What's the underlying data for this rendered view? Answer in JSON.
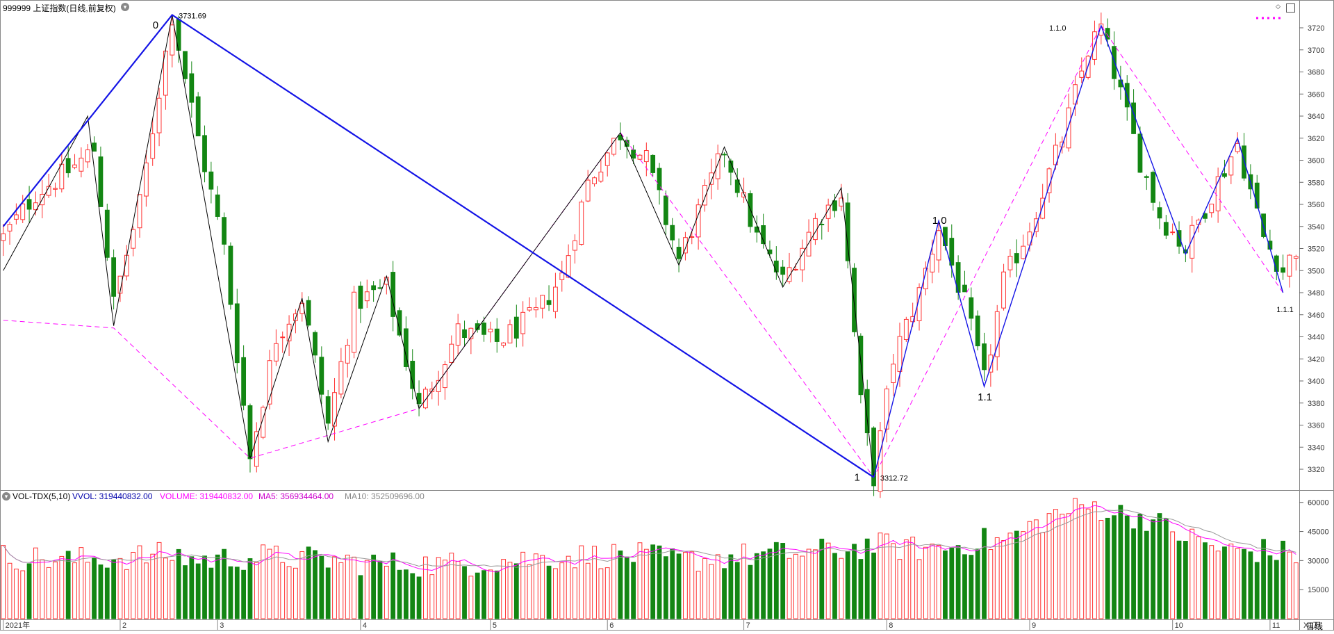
{
  "header": {
    "title": "999999 上证指数(日线,前复权)",
    "vol_indicator": "VOL-TDX(5,10)",
    "vvol": "VVOL: 319440832.00",
    "volume": "VOLUME: 319440832.00",
    "ma5": "MA5: 356934464.00",
    "ma10": "MA10: 352509696.00"
  },
  "period_label": "日线",
  "vol_unit": "X1万",
  "colors": {
    "up": "#ff3232",
    "down": "#138613",
    "blue": "#1414e6",
    "pink": "#ff00ff",
    "ma10": "#999999",
    "grid": "#888888"
  },
  "chart_data": {
    "type": "candlestick",
    "price_axis": {
      "min": 3310,
      "max": 3730,
      "ticks": [
        3320,
        3340,
        3360,
        3380,
        3400,
        3420,
        3440,
        3460,
        3480,
        3500,
        3520,
        3540,
        3560,
        3580,
        3600,
        3620,
        3640,
        3660,
        3680,
        3700,
        3720
      ]
    },
    "volume_axis": {
      "min": 0,
      "max": 66000,
      "ticks": [
        15000,
        30000,
        45000,
        60000
      ]
    },
    "x_labels": [
      {
        "label": "2021年",
        "index": 0
      },
      {
        "label": "2",
        "index": 18
      },
      {
        "label": "3",
        "index": 33
      },
      {
        "label": "4",
        "index": 55
      },
      {
        "label": "5",
        "index": 75
      },
      {
        "label": "6",
        "index": 93
      },
      {
        "label": "7",
        "index": 114
      },
      {
        "label": "8",
        "index": 136
      },
      {
        "label": "9",
        "index": 158
      },
      {
        "label": "10",
        "index": 180
      },
      {
        "label": "11",
        "index": 195
      }
    ],
    "candles_count": 200,
    "price_anchors": [
      [
        0,
        3530
      ],
      [
        5,
        3570
      ],
      [
        10,
        3590
      ],
      [
        14,
        3610
      ],
      [
        17,
        3470
      ],
      [
        21,
        3560
      ],
      [
        26,
        3731.69
      ],
      [
        30,
        3620
      ],
      [
        34,
        3520
      ],
      [
        38,
        3330
      ],
      [
        42,
        3440
      ],
      [
        46,
        3475
      ],
      [
        50,
        3360
      ],
      [
        54,
        3470
      ],
      [
        59,
        3485
      ],
      [
        64,
        3375
      ],
      [
        70,
        3445
      ],
      [
        76,
        3435
      ],
      [
        82,
        3460
      ],
      [
        86,
        3495
      ],
      [
        90,
        3580
      ],
      [
        95,
        3625
      ],
      [
        99,
        3600
      ],
      [
        104,
        3510
      ],
      [
        111,
        3610
      ],
      [
        116,
        3530
      ],
      [
        120,
        3490
      ],
      [
        125,
        3545
      ],
      [
        129,
        3570
      ],
      [
        132,
        3380
      ],
      [
        134,
        3312.72
      ],
      [
        137,
        3420
      ],
      [
        141,
        3480
      ],
      [
        144,
        3540
      ],
      [
        148,
        3470
      ],
      [
        151,
        3400
      ],
      [
        154,
        3490
      ],
      [
        158,
        3540
      ],
      [
        163,
        3620
      ],
      [
        165,
        3660
      ],
      [
        167,
        3700
      ],
      [
        169,
        3720
      ],
      [
        171,
        3680
      ],
      [
        175,
        3600
      ],
      [
        178,
        3550
      ],
      [
        182,
        3520
      ],
      [
        186,
        3570
      ],
      [
        190,
        3615
      ],
      [
        194,
        3530
      ],
      [
        197,
        3500
      ],
      [
        199,
        3520
      ]
    ],
    "volume_anchors": [
      [
        0,
        32000
      ],
      [
        10,
        30000
      ],
      [
        26,
        33000
      ],
      [
        30,
        30000
      ],
      [
        40,
        32000
      ],
      [
        50,
        30000
      ],
      [
        60,
        28000
      ],
      [
        70,
        28000
      ],
      [
        76,
        30000
      ],
      [
        86,
        32000
      ],
      [
        96,
        33000
      ],
      [
        104,
        30000
      ],
      [
        112,
        32000
      ],
      [
        118,
        33000
      ],
      [
        128,
        35000
      ],
      [
        134,
        38000
      ],
      [
        140,
        36000
      ],
      [
        146,
        37000
      ],
      [
        150,
        40000
      ],
      [
        154,
        40000
      ],
      [
        158,
        47000
      ],
      [
        162,
        54000
      ],
      [
        166,
        57000
      ],
      [
        168,
        58000
      ],
      [
        172,
        54000
      ],
      [
        176,
        52000
      ],
      [
        180,
        45000
      ],
      [
        184,
        40000
      ],
      [
        188,
        35000
      ],
      [
        194,
        35000
      ],
      [
        199,
        33000
      ]
    ],
    "annotations": [
      {
        "text": "0",
        "index": 23,
        "price": 3722
      },
      {
        "text": "3731.69",
        "index": 27,
        "price": 3731
      },
      {
        "text": "1",
        "index": 131,
        "price": 3312
      },
      {
        "text": "3312.72",
        "index": 135,
        "price": 3312
      },
      {
        "text": "1.0",
        "index": 143,
        "price": 3545
      },
      {
        "text": "1.1",
        "index": 150,
        "price": 3385
      },
      {
        "text": "1.1.0",
        "index": 161,
        "price": 3720
      },
      {
        "text": "1.1.1",
        "index": 196,
        "price": 3465
      }
    ],
    "wave_main": [
      [
        0,
        3540
      ],
      [
        26,
        3731.69
      ],
      [
        134,
        3312.72
      ]
    ],
    "wave_blue_thin": [
      [
        134,
        3312.72
      ],
      [
        144,
        3545
      ],
      [
        151,
        3395
      ],
      [
        169,
        3722
      ],
      [
        182,
        3515
      ],
      [
        190,
        3620
      ],
      [
        197,
        3480
      ]
    ],
    "wave_black": [
      [
        0,
        3500
      ],
      [
        13,
        3640
      ],
      [
        17,
        3450
      ],
      [
        26,
        3731.69
      ],
      [
        38,
        3330
      ],
      [
        46,
        3475
      ],
      [
        50,
        3345
      ],
      [
        59,
        3495
      ],
      [
        64,
        3375
      ],
      [
        95,
        3625
      ],
      [
        104,
        3505
      ],
      [
        111,
        3612
      ],
      [
        120,
        3485
      ],
      [
        129,
        3575
      ],
      [
        134,
        3312.72
      ]
    ],
    "wave_pink_dashed": [
      [
        0,
        3455
      ],
      [
        17,
        3448
      ],
      [
        38,
        3330
      ],
      [
        64,
        3375
      ],
      [
        95,
        3625
      ],
      [
        134,
        3312.72
      ],
      [
        169,
        3722
      ],
      [
        197,
        3480
      ]
    ]
  }
}
